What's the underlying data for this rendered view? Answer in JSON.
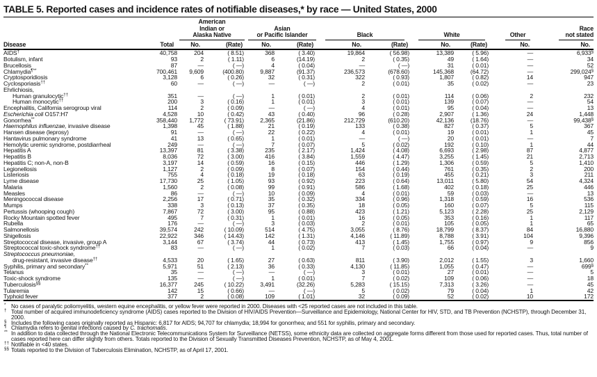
{
  "title": "TABLE 5. Reported cases and incidence rates of notifiable diseases,* by race — United States, 2000",
  "table": {
    "disease_header": "Disease",
    "total_header": "Total",
    "no_header": "No.",
    "rate_header": "(Rate)",
    "groups": {
      "american_indian": "American\nIndian or\nAlaska Native",
      "asian": "Asian\nor Pacific Islander",
      "black": "Black",
      "white": "White",
      "other": "Other",
      "race_not_stated": "Race\nnot stated"
    },
    "cell_keys": [
      "total",
      "american-indian-no",
      "american-indian-rate",
      "asian-pacific-no",
      "asian-pacific-rate",
      "black-no",
      "black-rate",
      "white-no",
      "white-rate",
      "other-no",
      "race-not-stated-no"
    ],
    "rows": [
      {
        "name": "AIDS",
        "sup": "†",
        "cells": [
          "40,758",
          "204",
          "( 8.51)",
          "368",
          "( 3.40)",
          "19,864",
          "( 56.98)",
          "13,389",
          "( 5.96)",
          "—",
          "6,933^§"
        ]
      },
      {
        "name": "Botulism, infant",
        "cells": [
          "93",
          "2",
          "( 1.11)",
          "6",
          "(14.19)",
          "2",
          "( 0.35)",
          "49",
          "( 1.64)",
          "—",
          "34"
        ]
      },
      {
        "name": "Brucellosis",
        "cells": [
          "87",
          "—",
          "( —)",
          "4",
          "( 0.04)",
          "—",
          "( —)",
          "31",
          "( 0.01)",
          "—",
          "52"
        ]
      },
      {
        "name": "Chlamydia",
        "sup": "¶**",
        "cells": [
          "700,461",
          "9,609",
          "(400.80)",
          "9,887",
          "(91.37)",
          "236,573",
          "(678.60)",
          "145,368",
          "(64.72)",
          "—",
          "299,024^§"
        ]
      },
      {
        "name": "Cryptosporidiosis",
        "cells": [
          "3,128",
          "6",
          "( 0.26)",
          "32",
          "( 0.31)",
          "322",
          "( 0.93)",
          "1,807",
          "( 0.82)",
          "14",
          "947"
        ]
      },
      {
        "name": "Cyclosporiasis",
        "sup": "††",
        "cells": [
          "60",
          "—",
          "( —)",
          "—",
          "( —)",
          "2",
          "( 0.01)",
          "35",
          "( 0.02)",
          "—",
          "23"
        ]
      },
      {
        "name": "Ehrlichiosis,"
      },
      {
        "indent": 1,
        "name": "Human granulocytic",
        "sup": "††",
        "cells": [
          "351",
          "—",
          "( —)",
          "1",
          "( 0.01)",
          "2",
          "( 0.01)",
          "114",
          "( 0.06)",
          "2",
          "232"
        ]
      },
      {
        "indent": 1,
        "name": "Human monocytic",
        "sup": "††",
        "cells": [
          "200",
          "3",
          "( 0.16)",
          "1",
          "( 0.01)",
          "3",
          "( 0.01)",
          "139",
          "( 0.07)",
          "—",
          "54"
        ]
      },
      {
        "name": "Encephalitis, California serogroup viral",
        "cells": [
          "114",
          "2",
          "( 0.09)",
          "—",
          "( —)",
          "4",
          "( 0.01)",
          "95",
          "( 0.04)",
          "—",
          "13"
        ]
      },
      {
        "italic": "Escherichia coli",
        "name": " O157:H7",
        "cells": [
          "4,528",
          "10",
          "( 0.42)",
          "43",
          "( 0.40)",
          "96",
          "( 0.28)",
          "2,907",
          "( 1.36)",
          "24",
          "1,448"
        ]
      },
      {
        "name": "Gonorrhea",
        "sup": "**",
        "cells": [
          "358,440",
          "1,772",
          "( 73.91)",
          "2,365",
          "(21.86)",
          "212,729",
          "(610.20)",
          "42,136",
          "(18.76)",
          "—",
          "99,438^§"
        ]
      },
      {
        "italic": "Haemophilus influenzae,",
        "name": " invasive disease",
        "cells": [
          "1,398",
          "45",
          "( 1.88)",
          "21",
          "( 0.19)",
          "133",
          "( 0.38)",
          "827",
          "( 0.37)",
          "5",
          "367"
        ]
      },
      {
        "name": "Hansen disease (leprosy)",
        "cells": [
          "91",
          "—",
          "( —)",
          "22",
          "( 0.22)",
          "4",
          "( 0.01)",
          "19",
          "( 0.01)",
          "1",
          "45"
        ]
      },
      {
        "name": "Hantavirus pulmonary syndrome",
        "cells": [
          "41",
          "13",
          "( 0.65)",
          "1",
          "( 0.01)",
          "—",
          "( —)",
          "20",
          "( 0.01)",
          "—",
          "7"
        ]
      },
      {
        "name": "Hemolytic uremic syndrome, postdiarrheal",
        "cells": [
          "249",
          "—",
          "( —)",
          "7",
          "( 0.07)",
          "5",
          "( 0.02)",
          "192",
          "( 0.10)",
          "1",
          "44"
        ]
      },
      {
        "name": "Hepatitis A",
        "cells": [
          "13,397",
          "81",
          "( 3.38)",
          "235",
          "( 2.17)",
          "1,424",
          "( 4.08)",
          "6,693",
          "( 2.98)",
          "87",
          "4,877"
        ]
      },
      {
        "name": "Hepatitis B",
        "cells": [
          "8,036",
          "72",
          "( 3.00)",
          "416",
          "( 3.84)",
          "1,559",
          "( 4.47)",
          "3,255",
          "( 1.45)",
          "21",
          "2,713"
        ]
      },
      {
        "name": "Hepatitis C; non-A, non-B",
        "cells": [
          "3,197",
          "14",
          "( 0.59)",
          "16",
          "( 0.15)",
          "446",
          "( 1.29)",
          "1,306",
          "( 0.59)",
          "5",
          "1,410"
        ]
      },
      {
        "name": "Legionellosis",
        "cells": [
          "1,127",
          "2",
          "( 0.09)",
          "8",
          "( 0.07)",
          "154",
          "( 0.44)",
          "761",
          "( 0.35)",
          "2",
          "200"
        ]
      },
      {
        "name": "Listeriosis",
        "cells": [
          "755",
          "4",
          "( 0.18)",
          "19",
          "( 0.18)",
          "63",
          "( 0.19)",
          "455",
          "( 0.21)",
          "3",
          "211"
        ]
      },
      {
        "name": "Lyme disease",
        "cells": [
          "17,730",
          "25",
          "( 1.05)",
          "93",
          "( 0.92)",
          "223",
          "( 0.64)",
          "13,011",
          "( 5.80)",
          "54",
          "4,324"
        ]
      },
      {
        "name": "Malaria",
        "cells": [
          "1,560",
          "2",
          "( 0.08)",
          "99",
          "( 0.91)",
          "586",
          "( 1.68)",
          "402",
          "( 0.18)",
          "25",
          "446"
        ]
      },
      {
        "name": "Measles",
        "cells": [
          "86",
          "—",
          "( —)",
          "10",
          "( 0.09)",
          "4",
          "( 0.01)",
          "59",
          "( 0.03)",
          "—",
          "13"
        ]
      },
      {
        "name": "Meningococcal disease",
        "cells": [
          "2,256",
          "17",
          "( 0.71)",
          "35",
          "( 0.32)",
          "334",
          "( 0.96)",
          "1,318",
          "( 0.59)",
          "16",
          "536"
        ]
      },
      {
        "name": "Mumps",
        "cells": [
          "338",
          "3",
          "( 0.13)",
          "37",
          "( 0.35)",
          "18",
          "( 0.05)",
          "160",
          "( 0.07)",
          "5",
          "115"
        ]
      },
      {
        "name": "Pertussis (whooping cough)",
        "cells": [
          "7,867",
          "72",
          "( 3.00)",
          "95",
          "( 0.88)",
          "423",
          "( 1.21)",
          "5,123",
          "( 2.28)",
          "25",
          "2,129"
        ]
      },
      {
        "name": "Rocky Mountain spotted fever",
        "cells": [
          "495",
          "7",
          "( 0.31)",
          "1",
          "( 0.01)",
          "16",
          "( 0.05)",
          "353",
          "( 0.16)",
          "1",
          "117"
        ]
      },
      {
        "name": "Rubella",
        "cells": [
          "176",
          "—",
          "( —)",
          "3",
          "( 0.03)",
          "2",
          "( 0.01)",
          "105",
          "( 0.05)",
          "1",
          "65"
        ]
      },
      {
        "name": "Salmonellosis",
        "cells": [
          "39,574",
          "242",
          "( 10.09)",
          "514",
          "( 4.75)",
          "3,055",
          "( 8.76)",
          "18,799",
          "( 8.37)",
          "84",
          "16,880"
        ]
      },
      {
        "name": "Shigellosis",
        "cells": [
          "22,922",
          "346",
          "( 14.43)",
          "142",
          "( 1.31)",
          "4,146",
          "( 11.89)",
          "8,788",
          "( 3.91)",
          "104",
          "9,396"
        ]
      },
      {
        "name": "Streptococcal disease, invasive, group A",
        "cells": [
          "3,144",
          "67",
          "( 3.74)",
          "44",
          "( 0.73)",
          "413",
          "( 1.45)",
          "1,755",
          "( 0.97)",
          "9",
          "856"
        ]
      },
      {
        "name": "Streptococcal toxic-shock syndrome",
        "sup": "††",
        "cells": [
          "83",
          "—",
          "( —)",
          "1",
          "( 0.02)",
          "7",
          "( 0.03)",
          "66",
          "( 0.04)",
          "—",
          "9"
        ]
      },
      {
        "italic": "Streptococcus pneumoniae,"
      },
      {
        "indent": 1,
        "name": "drug-resistant, invasive disease",
        "sup": "††",
        "cells": [
          "4,533",
          "20",
          "( 1.65)",
          "27",
          "( 0.63)",
          "811",
          "( 3.90)",
          "2,012",
          "( 1.55)",
          "3",
          "1,660"
        ]
      },
      {
        "name": "Syphilis, primary and secondary",
        "sup": "**",
        "cells": [
          "5,971",
          "51",
          "( 2.13)",
          "36",
          "( 0.33)",
          "4,130",
          "( 11.85)",
          "1,055",
          "( 0.47)",
          "—",
          "699^§"
        ]
      },
      {
        "name": "Tetanus",
        "cells": [
          "35",
          "—",
          "( —)",
          "—",
          "( —)",
          "3",
          "( 0.01)",
          "27",
          "( 0.01)",
          "—",
          "5"
        ]
      },
      {
        "name": "Toxic-shock syndrome",
        "cells": [
          "135",
          "—",
          "( —)",
          "1",
          "( 0.01)",
          "7",
          "( 0.02)",
          "109",
          "( 0.06)",
          "—",
          "18"
        ]
      },
      {
        "name": "Tuberculosis",
        "sup": "§§",
        "cells": [
          "16,377",
          "245",
          "( 10.22)",
          "3,491",
          "(32.26)",
          "5,283",
          "( 15.15)",
          "7,313",
          "( 3.26)",
          "—",
          "45"
        ]
      },
      {
        "name": "Tularemia",
        "cells": [
          "142",
          "15",
          "( 0.66)",
          "—",
          "( —)",
          "5",
          "( 0.02)",
          "79",
          "( 0.04)",
          "1",
          "42"
        ]
      },
      {
        "name": "Typhoid fever",
        "cells": [
          "377",
          "2",
          "( 0.08)",
          "109",
          "( 1.01)",
          "32",
          "( 0.09)",
          "52",
          "( 0.02)",
          "10",
          "172"
        ]
      }
    ]
  },
  "footnotes": [
    {
      "marker": "*",
      "segments": [
        {
          "text": "No cases of paralytic poliomyelitis, western equine encephalitis, or yellow fever were reported in 2000. Diseases with <25 reported cases are not included in this table."
        }
      ]
    },
    {
      "marker": "†",
      "segments": [
        {
          "text": "Total number of acquired immunodeficiency syndrome (AIDS) cases reported to the Division of HIV/AIDS Prevention—Surveillance and Epidemiology, National Center for HIV, STD, and TB Prevention (NCHSTP), through December 31, 2000."
        }
      ]
    },
    {
      "marker": "§",
      "segments": [
        {
          "text": "Includes the following cases originally reported as Hispanic: 6,817 for AIDS; 94,707 for chlamydia; 18,994 for gonorrhea; and 551 for syphilis, primary and secondary."
        }
      ]
    },
    {
      "marker": "¶",
      "segments": [
        {
          "text": "Chlamydia refers to genital infections caused by "
        },
        {
          "text": "C. trachomatis",
          "italic": true
        },
        {
          "text": "."
        }
      ]
    },
    {
      "marker": "**",
      "segments": [
        {
          "text": "In addition to data collected through the National Electronic Telecommunications System for Surveillance (NETSS), some ethnicity data are collected on aggregate forms different from those used for reported cases. Thus, total number of cases reported here can differ slightly from others. Totals reported to the Division of Sexually Transmitted Diseases Prevention, NCHSTP, as of May 4, 2001."
        }
      ]
    },
    {
      "marker": "††",
      "segments": [
        {
          "text": "Notifiable in <40 states."
        }
      ]
    },
    {
      "marker": "§§",
      "segments": [
        {
          "text": "Totals reported to the Division of Tuberculosis Elimination, NCHSTP, as of April 17, 2001."
        }
      ]
    }
  ]
}
